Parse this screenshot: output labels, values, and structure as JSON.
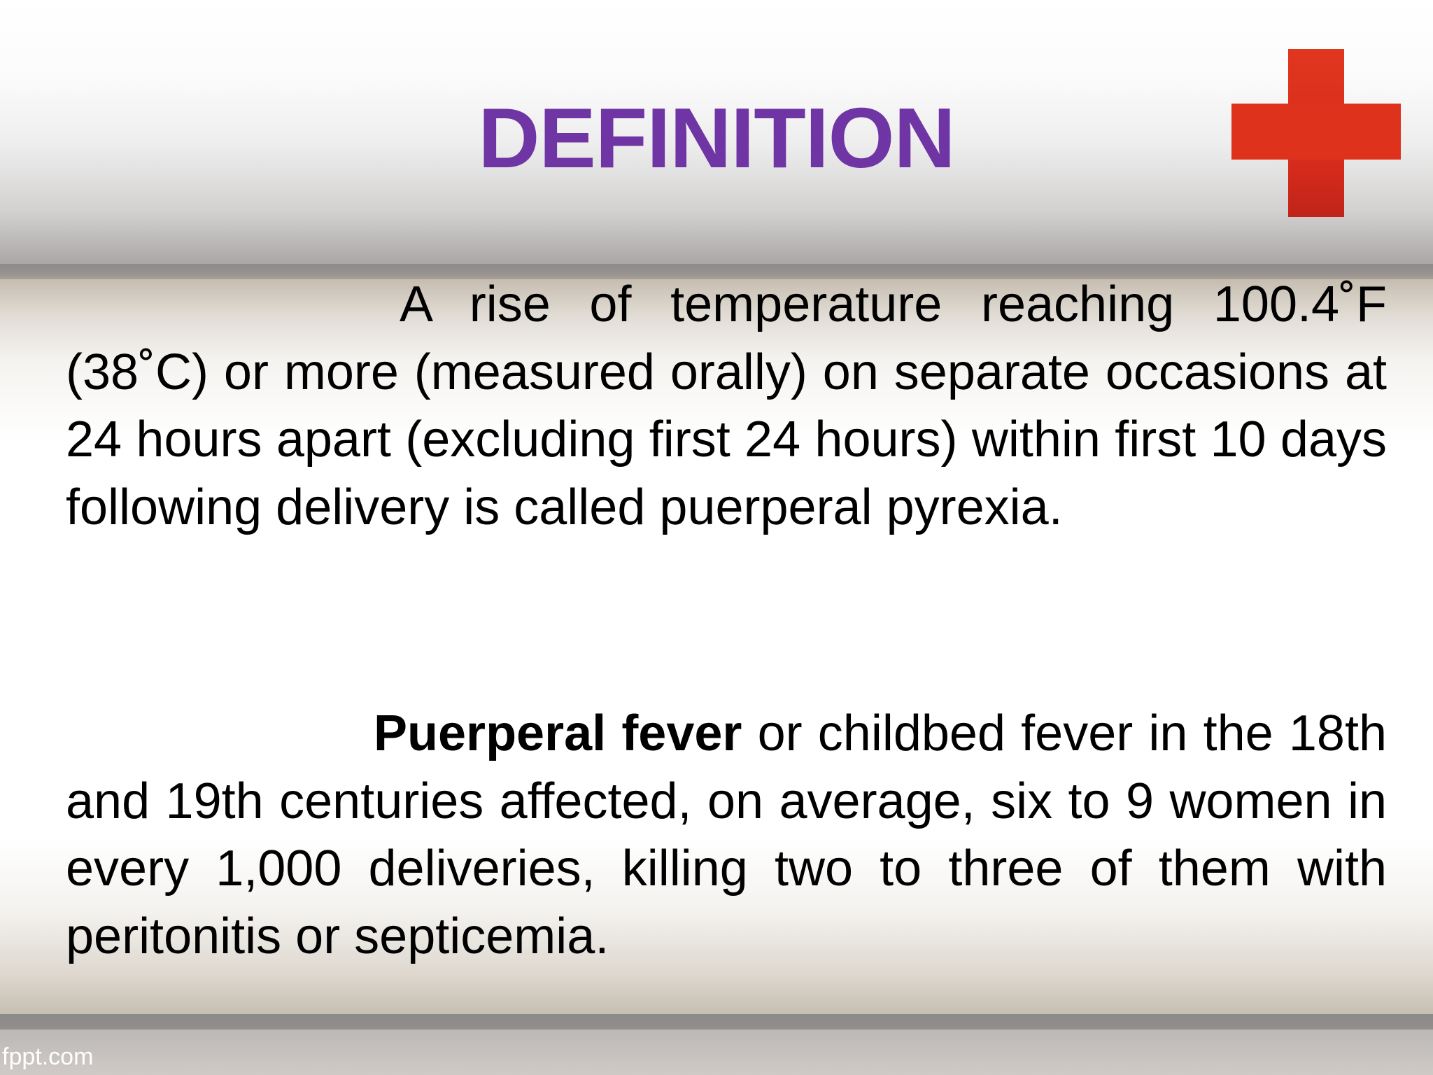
{
  "slide": {
    "title": "DEFINITION",
    "paragraph_1": "A rise of temperature reaching 100.4˚F (38˚C) or more (measured orally) on separate occasions at 24 hours apart (excluding first 24 hours) within first 10 days following delivery is called puerperal pyrexia.",
    "paragraph_2": {
      "lead_bold": "Puerperal fever",
      "rest": " or childbed fever in the 18th and 19th centuries affected, on average, six to 9 women in every 1,000 deliveries, killing two to three of them with peritonitis or septicemia."
    },
    "icon": "red-cross-icon",
    "footer_brand": "fppt.com"
  },
  "colors": {
    "title": "#7035a4",
    "cross": "#de321d",
    "body_text": "#000000"
  }
}
